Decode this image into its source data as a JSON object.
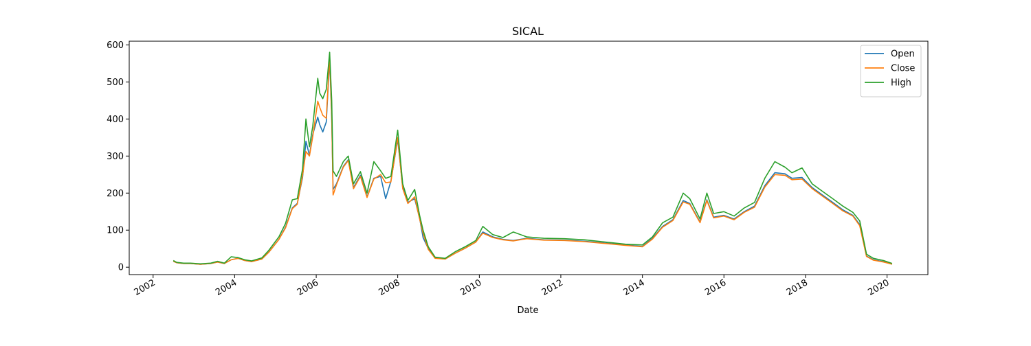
{
  "chart_data": {
    "type": "line",
    "title": "SICAL",
    "xlabel": "Date",
    "ylabel": "",
    "xlim": [
      "2001-06-01",
      "2021-01-01"
    ],
    "ylim": [
      -20,
      610
    ],
    "x_ticks": [
      "2002",
      "2004",
      "2006",
      "2008",
      "2010",
      "2012",
      "2014",
      "2016",
      "2018",
      "2020"
    ],
    "y_ticks": [
      0,
      100,
      200,
      300,
      400,
      500,
      600
    ],
    "legend_position": "top-right",
    "grid": false,
    "series": [
      {
        "name": "Open",
        "color": "#1f77b4",
        "points": [
          [
            "2002-07-01",
            16
          ],
          [
            "2002-08-01",
            12
          ],
          [
            "2002-10-01",
            10
          ],
          [
            "2002-12-01",
            10
          ],
          [
            "2003-03-01",
            8
          ],
          [
            "2003-06-01",
            10
          ],
          [
            "2003-08-01",
            14
          ],
          [
            "2003-10-01",
            10
          ],
          [
            "2003-12-01",
            20
          ],
          [
            "2004-02-01",
            24
          ],
          [
            "2004-04-01",
            18
          ],
          [
            "2004-06-01",
            15
          ],
          [
            "2004-09-01",
            22
          ],
          [
            "2004-11-01",
            40
          ],
          [
            "2005-02-01",
            75
          ],
          [
            "2005-04-01",
            108
          ],
          [
            "2005-06-01",
            160
          ],
          [
            "2005-07-15",
            172
          ],
          [
            "2005-09-01",
            242
          ],
          [
            "2005-10-01",
            340
          ],
          [
            "2005-11-01",
            302
          ],
          [
            "2005-12-01",
            358
          ],
          [
            "2006-01-15",
            405
          ],
          [
            "2006-02-01",
            385
          ],
          [
            "2006-03-01",
            365
          ],
          [
            "2006-04-01",
            392
          ],
          [
            "2006-05-01",
            560
          ],
          [
            "2006-05-20",
            405
          ],
          [
            "2006-06-01",
            210
          ],
          [
            "2006-07-01",
            225
          ],
          [
            "2006-09-01",
            272
          ],
          [
            "2006-10-15",
            290
          ],
          [
            "2006-12-01",
            215
          ],
          [
            "2007-02-01",
            248
          ],
          [
            "2007-04-01",
            190
          ],
          [
            "2007-06-01",
            240
          ],
          [
            "2007-08-01",
            245
          ],
          [
            "2007-09-15",
            185
          ],
          [
            "2007-11-01",
            232
          ],
          [
            "2008-01-01",
            345
          ],
          [
            "2008-02-15",
            215
          ],
          [
            "2008-04-01",
            175
          ],
          [
            "2008-06-01",
            185
          ],
          [
            "2008-07-15",
            132
          ],
          [
            "2008-08-15",
            80
          ],
          [
            "2008-10-01",
            50
          ],
          [
            "2008-12-01",
            25
          ],
          [
            "2009-03-01",
            22
          ],
          [
            "2009-06-01",
            38
          ],
          [
            "2009-09-01",
            52
          ],
          [
            "2009-12-01",
            68
          ],
          [
            "2010-02-01",
            95
          ],
          [
            "2010-05-01",
            82
          ],
          [
            "2010-08-01",
            75
          ],
          [
            "2010-11-01",
            72
          ],
          [
            "2011-03-01",
            78
          ],
          [
            "2011-08-01",
            74
          ],
          [
            "2012-02-01",
            73
          ],
          [
            "2012-08-01",
            70
          ],
          [
            "2013-02-01",
            65
          ],
          [
            "2013-08-01",
            60
          ],
          [
            "2014-01-01",
            56
          ],
          [
            "2014-04-01",
            78
          ],
          [
            "2014-07-01",
            110
          ],
          [
            "2014-10-01",
            128
          ],
          [
            "2015-01-01",
            180
          ],
          [
            "2015-03-01",
            172
          ],
          [
            "2015-06-01",
            122
          ],
          [
            "2015-08-01",
            182
          ],
          [
            "2015-10-01",
            135
          ],
          [
            "2016-01-01",
            140
          ],
          [
            "2016-04-01",
            130
          ],
          [
            "2016-07-01",
            150
          ],
          [
            "2016-10-01",
            165
          ],
          [
            "2017-01-01",
            220
          ],
          [
            "2017-04-01",
            255
          ],
          [
            "2017-07-01",
            252
          ],
          [
            "2017-09-01",
            240
          ],
          [
            "2017-12-01",
            242
          ],
          [
            "2018-03-01",
            215
          ],
          [
            "2018-06-01",
            195
          ],
          [
            "2018-09-01",
            175
          ],
          [
            "2018-12-01",
            155
          ],
          [
            "2019-03-01",
            140
          ],
          [
            "2019-05-01",
            115
          ],
          [
            "2019-07-01",
            30
          ],
          [
            "2019-09-01",
            20
          ],
          [
            "2019-12-01",
            15
          ],
          [
            "2020-02-15",
            8
          ]
        ]
      },
      {
        "name": "Close",
        "color": "#ff7f0e",
        "points": [
          [
            "2002-07-01",
            16
          ],
          [
            "2002-08-01",
            12
          ],
          [
            "2002-10-01",
            10
          ],
          [
            "2002-12-01",
            10
          ],
          [
            "2003-03-01",
            8
          ],
          [
            "2003-06-01",
            10
          ],
          [
            "2003-08-01",
            14
          ],
          [
            "2003-10-01",
            10
          ],
          [
            "2003-12-01",
            20
          ],
          [
            "2004-02-01",
            24
          ],
          [
            "2004-04-01",
            18
          ],
          [
            "2004-06-01",
            15
          ],
          [
            "2004-09-01",
            22
          ],
          [
            "2004-11-01",
            40
          ],
          [
            "2005-02-01",
            75
          ],
          [
            "2005-04-01",
            106
          ],
          [
            "2005-06-01",
            158
          ],
          [
            "2005-07-15",
            170
          ],
          [
            "2005-09-01",
            248
          ],
          [
            "2005-10-01",
            312
          ],
          [
            "2005-11-01",
            300
          ],
          [
            "2005-12-01",
            352
          ],
          [
            "2006-01-15",
            448
          ],
          [
            "2006-02-01",
            432
          ],
          [
            "2006-03-01",
            410
          ],
          [
            "2006-04-01",
            402
          ],
          [
            "2006-05-01",
            568
          ],
          [
            "2006-05-20",
            410
          ],
          [
            "2006-06-01",
            195
          ],
          [
            "2006-07-01",
            222
          ],
          [
            "2006-09-01",
            270
          ],
          [
            "2006-10-15",
            288
          ],
          [
            "2006-12-01",
            212
          ],
          [
            "2007-02-01",
            245
          ],
          [
            "2007-04-01",
            188
          ],
          [
            "2007-06-01",
            238
          ],
          [
            "2007-08-01",
            250
          ],
          [
            "2007-09-15",
            228
          ],
          [
            "2007-11-01",
            230
          ],
          [
            "2008-01-01",
            350
          ],
          [
            "2008-02-15",
            212
          ],
          [
            "2008-04-01",
            172
          ],
          [
            "2008-06-01",
            190
          ],
          [
            "2008-07-15",
            130
          ],
          [
            "2008-08-15",
            92
          ],
          [
            "2008-10-01",
            48
          ],
          [
            "2008-12-01",
            24
          ],
          [
            "2009-03-01",
            22
          ],
          [
            "2009-06-01",
            38
          ],
          [
            "2009-09-01",
            52
          ],
          [
            "2009-12-01",
            68
          ],
          [
            "2010-02-01",
            92
          ],
          [
            "2010-05-01",
            80
          ],
          [
            "2010-08-01",
            74
          ],
          [
            "2010-11-01",
            71
          ],
          [
            "2011-03-01",
            77
          ],
          [
            "2011-08-01",
            73
          ],
          [
            "2012-02-01",
            72
          ],
          [
            "2012-08-01",
            69
          ],
          [
            "2013-02-01",
            64
          ],
          [
            "2013-08-01",
            59
          ],
          [
            "2014-01-01",
            55
          ],
          [
            "2014-04-01",
            76
          ],
          [
            "2014-07-01",
            108
          ],
          [
            "2014-10-01",
            126
          ],
          [
            "2015-01-01",
            176
          ],
          [
            "2015-03-01",
            170
          ],
          [
            "2015-06-01",
            120
          ],
          [
            "2015-08-01",
            180
          ],
          [
            "2015-10-01",
            133
          ],
          [
            "2016-01-01",
            138
          ],
          [
            "2016-04-01",
            128
          ],
          [
            "2016-07-01",
            148
          ],
          [
            "2016-10-01",
            162
          ],
          [
            "2017-01-01",
            216
          ],
          [
            "2017-04-01",
            250
          ],
          [
            "2017-07-01",
            248
          ],
          [
            "2017-09-01",
            236
          ],
          [
            "2017-12-01",
            238
          ],
          [
            "2018-03-01",
            212
          ],
          [
            "2018-06-01",
            192
          ],
          [
            "2018-09-01",
            172
          ],
          [
            "2018-12-01",
            152
          ],
          [
            "2019-03-01",
            138
          ],
          [
            "2019-05-01",
            112
          ],
          [
            "2019-07-01",
            29
          ],
          [
            "2019-09-01",
            19
          ],
          [
            "2019-12-01",
            14
          ],
          [
            "2020-02-15",
            8
          ]
        ]
      },
      {
        "name": "High",
        "color": "#2ca02c",
        "points": [
          [
            "2002-07-01",
            18
          ],
          [
            "2002-08-01",
            13
          ],
          [
            "2002-10-01",
            11
          ],
          [
            "2002-12-01",
            11
          ],
          [
            "2003-03-01",
            9
          ],
          [
            "2003-06-01",
            11
          ],
          [
            "2003-08-01",
            16
          ],
          [
            "2003-10-01",
            11
          ],
          [
            "2003-12-01",
            28
          ],
          [
            "2004-02-01",
            26
          ],
          [
            "2004-04-01",
            20
          ],
          [
            "2004-06-01",
            17
          ],
          [
            "2004-09-01",
            25
          ],
          [
            "2004-11-01",
            45
          ],
          [
            "2005-02-01",
            82
          ],
          [
            "2005-04-01",
            118
          ],
          [
            "2005-06-01",
            182
          ],
          [
            "2005-07-15",
            185
          ],
          [
            "2005-09-01",
            265
          ],
          [
            "2005-10-01",
            400
          ],
          [
            "2005-11-01",
            325
          ],
          [
            "2005-12-01",
            380
          ],
          [
            "2006-01-15",
            510
          ],
          [
            "2006-02-01",
            470
          ],
          [
            "2006-03-01",
            455
          ],
          [
            "2006-04-01",
            480
          ],
          [
            "2006-05-01",
            580
          ],
          [
            "2006-05-20",
            450
          ],
          [
            "2006-06-01",
            260
          ],
          [
            "2006-07-01",
            245
          ],
          [
            "2006-09-01",
            285
          ],
          [
            "2006-10-15",
            300
          ],
          [
            "2006-12-01",
            225
          ],
          [
            "2007-02-01",
            258
          ],
          [
            "2007-04-01",
            200
          ],
          [
            "2007-06-01",
            285
          ],
          [
            "2007-08-01",
            260
          ],
          [
            "2007-09-15",
            240
          ],
          [
            "2007-11-01",
            245
          ],
          [
            "2008-01-01",
            370
          ],
          [
            "2008-02-15",
            225
          ],
          [
            "2008-04-01",
            180
          ],
          [
            "2008-06-01",
            210
          ],
          [
            "2008-07-15",
            140
          ],
          [
            "2008-08-15",
            100
          ],
          [
            "2008-10-01",
            55
          ],
          [
            "2008-12-01",
            27
          ],
          [
            "2009-03-01",
            24
          ],
          [
            "2009-06-01",
            42
          ],
          [
            "2009-09-01",
            56
          ],
          [
            "2009-12-01",
            72
          ],
          [
            "2010-02-01",
            110
          ],
          [
            "2010-05-01",
            88
          ],
          [
            "2010-08-01",
            80
          ],
          [
            "2010-11-01",
            95
          ],
          [
            "2011-03-01",
            82
          ],
          [
            "2011-08-01",
            78
          ],
          [
            "2012-02-01",
            77
          ],
          [
            "2012-08-01",
            74
          ],
          [
            "2013-02-01",
            68
          ],
          [
            "2013-08-01",
            62
          ],
          [
            "2014-01-01",
            60
          ],
          [
            "2014-04-01",
            82
          ],
          [
            "2014-07-01",
            120
          ],
          [
            "2014-10-01",
            135
          ],
          [
            "2015-01-01",
            200
          ],
          [
            "2015-03-01",
            185
          ],
          [
            "2015-06-01",
            130
          ],
          [
            "2015-08-01",
            200
          ],
          [
            "2015-10-01",
            145
          ],
          [
            "2016-01-01",
            150
          ],
          [
            "2016-04-01",
            138
          ],
          [
            "2016-07-01",
            160
          ],
          [
            "2016-10-01",
            175
          ],
          [
            "2017-01-01",
            240
          ],
          [
            "2017-04-01",
            285
          ],
          [
            "2017-07-01",
            270
          ],
          [
            "2017-09-01",
            255
          ],
          [
            "2017-12-01",
            268
          ],
          [
            "2018-03-01",
            225
          ],
          [
            "2018-06-01",
            205
          ],
          [
            "2018-09-01",
            185
          ],
          [
            "2018-12-01",
            165
          ],
          [
            "2019-03-01",
            148
          ],
          [
            "2019-05-01",
            125
          ],
          [
            "2019-07-01",
            35
          ],
          [
            "2019-09-01",
            24
          ],
          [
            "2019-12-01",
            18
          ],
          [
            "2020-02-15",
            10
          ]
        ]
      }
    ]
  }
}
